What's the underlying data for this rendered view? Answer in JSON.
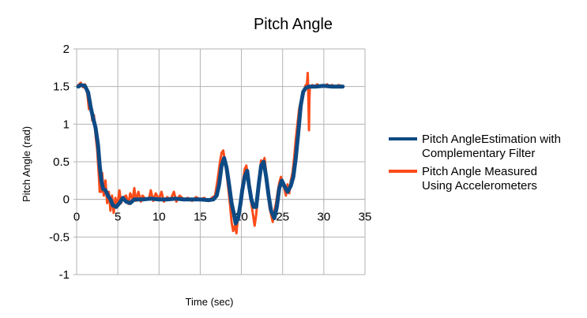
{
  "chart_data": {
    "type": "line",
    "title": "Pitch Angle",
    "xlabel": "Time (sec)",
    "ylabel": "Pitch Angle (rad)",
    "xlim": [
      0,
      35
    ],
    "ylim": [
      -1,
      2
    ],
    "x_ticks": [
      0,
      5,
      10,
      15,
      20,
      25,
      30,
      35
    ],
    "y_ticks": [
      -1,
      -0.5,
      0,
      0.5,
      1,
      1.5,
      2
    ],
    "grid": true,
    "legend_position": "right",
    "series": [
      {
        "name": "Pitch AngleEstimation with Complementary Filter",
        "legend_lines": [
          "Pitch AngleEstimation with",
          "Complementary Filter"
        ],
        "color": "#0e4a84",
        "points": [
          [
            0.2,
            1.5
          ],
          [
            0.5,
            1.52
          ],
          [
            1.0,
            1.51
          ],
          [
            1.4,
            1.42
          ],
          [
            1.7,
            1.23
          ],
          [
            2.0,
            1.08
          ],
          [
            2.3,
            0.95
          ],
          [
            2.6,
            0.72
          ],
          [
            2.8,
            0.45
          ],
          [
            3.0,
            0.25
          ],
          [
            3.2,
            0.14
          ],
          [
            3.5,
            0.12
          ],
          [
            3.8,
            0.05
          ],
          [
            4.1,
            0.0
          ],
          [
            4.4,
            -0.08
          ],
          [
            4.8,
            -0.1
          ],
          [
            5.2,
            -0.05
          ],
          [
            5.6,
            0.02
          ],
          [
            6.0,
            -0.03
          ],
          [
            6.5,
            -0.05
          ],
          [
            7.0,
            0.0
          ],
          [
            8.0,
            0.0
          ],
          [
            9.0,
            0.01
          ],
          [
            10.0,
            0.0
          ],
          [
            11.0,
            0.0
          ],
          [
            12.0,
            0.01
          ],
          [
            13.0,
            0.0
          ],
          [
            14.0,
            0.0
          ],
          [
            15.0,
            0.0
          ],
          [
            16.0,
            -0.01
          ],
          [
            16.6,
            0.0
          ],
          [
            17.0,
            0.05
          ],
          [
            17.3,
            0.2
          ],
          [
            17.6,
            0.45
          ],
          [
            17.9,
            0.55
          ],
          [
            18.2,
            0.42
          ],
          [
            18.5,
            0.2
          ],
          [
            18.8,
            -0.05
          ],
          [
            19.1,
            -0.2
          ],
          [
            19.3,
            -0.32
          ],
          [
            19.6,
            -0.25
          ],
          [
            19.9,
            -0.05
          ],
          [
            20.1,
            0.12
          ],
          [
            20.4,
            0.3
          ],
          [
            20.7,
            0.38
          ],
          [
            20.9,
            0.2
          ],
          [
            21.2,
            0.0
          ],
          [
            21.5,
            -0.1
          ],
          [
            21.8,
            -0.1
          ],
          [
            22.1,
            0.2
          ],
          [
            22.4,
            0.45
          ],
          [
            22.7,
            0.5
          ],
          [
            23.0,
            0.3
          ],
          [
            23.3,
            0.05
          ],
          [
            23.6,
            -0.15
          ],
          [
            24.0,
            -0.25
          ],
          [
            24.3,
            -0.1
          ],
          [
            24.6,
            0.15
          ],
          [
            24.9,
            0.25
          ],
          [
            25.2,
            0.18
          ],
          [
            25.6,
            0.1
          ],
          [
            26.0,
            0.18
          ],
          [
            26.3,
            0.3
          ],
          [
            26.6,
            0.55
          ],
          [
            26.9,
            0.88
          ],
          [
            27.2,
            1.25
          ],
          [
            27.5,
            1.43
          ],
          [
            27.8,
            1.48
          ],
          [
            28.2,
            1.5
          ],
          [
            29.0,
            1.5
          ],
          [
            30.0,
            1.51
          ],
          [
            31.0,
            1.5
          ],
          [
            32.0,
            1.5
          ],
          [
            32.3,
            1.5
          ]
        ]
      },
      {
        "name": "Pitch Angle Measured Using Accelerometers",
        "legend_lines": [
          "Pitch Angle Measured",
          "Using Accelerometers"
        ],
        "color": "#fc4c1a",
        "points": [
          [
            0.2,
            1.52
          ],
          [
            0.5,
            1.55
          ],
          [
            0.8,
            1.49
          ],
          [
            1.0,
            1.53
          ],
          [
            1.3,
            1.4
          ],
          [
            1.5,
            1.2
          ],
          [
            1.7,
            1.3
          ],
          [
            1.9,
            1.05
          ],
          [
            2.1,
            1.12
          ],
          [
            2.3,
            0.85
          ],
          [
            2.5,
            0.65
          ],
          [
            2.7,
            0.3
          ],
          [
            2.8,
            0.1
          ],
          [
            2.9,
            0.3
          ],
          [
            3.0,
            0.1
          ],
          [
            3.1,
            0.35
          ],
          [
            3.3,
            0.05
          ],
          [
            3.5,
            0.25
          ],
          [
            3.7,
            -0.05
          ],
          [
            3.9,
            0.1
          ],
          [
            4.1,
            -0.15
          ],
          [
            4.3,
            0.05
          ],
          [
            4.5,
            -0.18
          ],
          [
            4.7,
            0.02
          ],
          [
            4.9,
            -0.1
          ],
          [
            5.2,
            0.12
          ],
          [
            5.4,
            -0.05
          ],
          [
            5.6,
            0.02
          ],
          [
            6.0,
            0.05
          ],
          [
            6.3,
            -0.06
          ],
          [
            6.5,
            0.08
          ],
          [
            6.8,
            0.0
          ],
          [
            7.0,
            0.15
          ],
          [
            7.2,
            -0.02
          ],
          [
            7.5,
            0.1
          ],
          [
            7.8,
            -0.03
          ],
          [
            8.0,
            0.05
          ],
          [
            8.4,
            0.0
          ],
          [
            8.8,
            0.02
          ],
          [
            9.0,
            0.12
          ],
          [
            9.3,
            -0.02
          ],
          [
            9.6,
            0.08
          ],
          [
            10.0,
            0.0
          ],
          [
            10.3,
            0.1
          ],
          [
            10.6,
            -0.03
          ],
          [
            11.0,
            0.03
          ],
          [
            11.4,
            0.0
          ],
          [
            11.8,
            0.1
          ],
          [
            12.1,
            -0.03
          ],
          [
            12.5,
            0.05
          ],
          [
            13.0,
            0.0
          ],
          [
            13.5,
            0.02
          ],
          [
            14.0,
            -0.02
          ],
          [
            14.5,
            0.03
          ],
          [
            15.0,
            0.0
          ],
          [
            15.5,
            0.02
          ],
          [
            16.0,
            -0.02
          ],
          [
            16.4,
            0.02
          ],
          [
            16.8,
            0.05
          ],
          [
            17.1,
            0.25
          ],
          [
            17.4,
            0.5
          ],
          [
            17.6,
            0.62
          ],
          [
            17.8,
            0.65
          ],
          [
            18.0,
            0.5
          ],
          [
            18.2,
            0.35
          ],
          [
            18.4,
            0.15
          ],
          [
            18.6,
            -0.05
          ],
          [
            18.8,
            -0.3
          ],
          [
            19.0,
            -0.42
          ],
          [
            19.2,
            -0.35
          ],
          [
            19.4,
            -0.45
          ],
          [
            19.6,
            -0.2
          ],
          [
            19.8,
            -0.1
          ],
          [
            20.0,
            0.1
          ],
          [
            20.2,
            0.25
          ],
          [
            20.4,
            0.4
          ],
          [
            20.6,
            0.45
          ],
          [
            20.8,
            0.3
          ],
          [
            21.0,
            0.1
          ],
          [
            21.2,
            -0.05
          ],
          [
            21.4,
            -0.2
          ],
          [
            21.6,
            -0.35
          ],
          [
            21.8,
            -0.2
          ],
          [
            22.0,
            0.05
          ],
          [
            22.2,
            0.35
          ],
          [
            22.4,
            0.52
          ],
          [
            22.6,
            0.45
          ],
          [
            22.8,
            0.55
          ],
          [
            23.0,
            0.35
          ],
          [
            23.2,
            0.1
          ],
          [
            23.4,
            -0.1
          ],
          [
            23.6,
            -0.2
          ],
          [
            23.8,
            -0.3
          ],
          [
            24.0,
            -0.15
          ],
          [
            24.2,
            -0.05
          ],
          [
            24.4,
            0.1
          ],
          [
            24.6,
            0.22
          ],
          [
            24.8,
            0.3
          ],
          [
            25.0,
            0.22
          ],
          [
            25.2,
            0.15
          ],
          [
            25.4,
            0.05
          ],
          [
            25.6,
            0.2
          ],
          [
            25.8,
            0.08
          ],
          [
            26.0,
            0.25
          ],
          [
            26.2,
            0.35
          ],
          [
            26.4,
            0.55
          ],
          [
            26.6,
            0.8
          ],
          [
            26.8,
            1.0
          ],
          [
            27.0,
            1.2
          ],
          [
            27.2,
            1.3
          ],
          [
            27.4,
            1.38
          ],
          [
            27.6,
            1.45
          ],
          [
            27.8,
            1.52
          ],
          [
            27.9,
            1.48
          ],
          [
            28.0,
            1.6
          ],
          [
            28.05,
            1.68
          ],
          [
            28.1,
            1.5
          ],
          [
            28.15,
            1.2
          ],
          [
            28.2,
            0.92
          ],
          [
            28.25,
            1.3
          ],
          [
            28.3,
            1.48
          ],
          [
            28.6,
            1.52
          ],
          [
            28.9,
            1.5
          ],
          [
            29.2,
            1.53
          ],
          [
            29.5,
            1.5
          ],
          [
            29.8,
            1.52
          ],
          [
            30.1,
            1.5
          ],
          [
            30.4,
            1.53
          ],
          [
            30.7,
            1.5
          ],
          [
            31.0,
            1.52
          ],
          [
            31.4,
            1.5
          ],
          [
            31.8,
            1.52
          ],
          [
            32.3,
            1.5
          ]
        ]
      }
    ]
  }
}
